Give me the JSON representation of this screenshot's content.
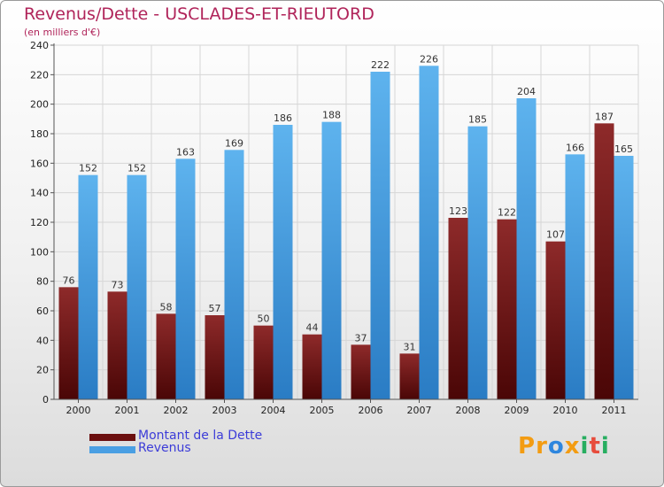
{
  "header": {
    "title": "Revenus/Dette - USCLADES-ET-RIEUTORD",
    "subtitle": "(en milliers d'€)"
  },
  "legend": {
    "items": [
      {
        "label": "Montant de la Dette",
        "color": "#7a1a1a"
      },
      {
        "label": "Revenus",
        "color": "#4a9fe3"
      }
    ]
  },
  "logo": {
    "text": "Proxiti",
    "letters": [
      "P",
      "r",
      "o",
      "x",
      "i",
      "t",
      "i"
    ],
    "colors": [
      "#f39c12",
      "#f39c12",
      "#2e86de",
      "#f39c12",
      "#27ae60",
      "#e74c3c",
      "#27ae60"
    ]
  },
  "chart_data": {
    "type": "bar",
    "title": "Revenus/Dette - USCLADES-ET-RIEUTORD",
    "subtitle": "(en milliers d'€)",
    "categories": [
      "2000",
      "2001",
      "2002",
      "2003",
      "2004",
      "2005",
      "2006",
      "2007",
      "2008",
      "2009",
      "2010",
      "2011"
    ],
    "series": [
      {
        "name": "Montant de la Dette",
        "color": "#7a1a1a",
        "values": [
          76,
          73,
          58,
          57,
          50,
          44,
          37,
          31,
          123,
          122,
          107,
          187
        ]
      },
      {
        "name": "Revenus",
        "color": "#4a9fe3",
        "values": [
          152,
          152,
          163,
          169,
          186,
          188,
          222,
          226,
          185,
          204,
          166,
          165
        ]
      }
    ],
    "ylim": [
      0,
      240
    ],
    "yticks": [
      0,
      20,
      40,
      60,
      80,
      100,
      120,
      140,
      160,
      180,
      200,
      220,
      240
    ],
    "grid": true,
    "legend_position": "bottom-left"
  }
}
